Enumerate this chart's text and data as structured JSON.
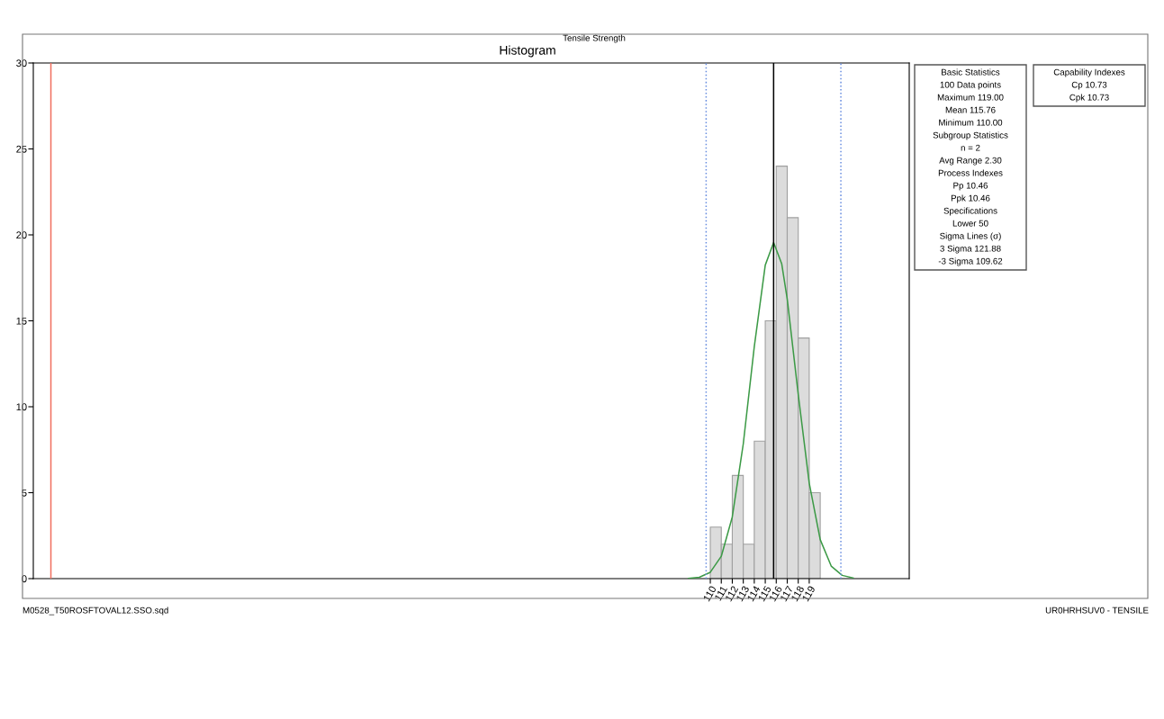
{
  "chart_data": {
    "type": "histogram",
    "title": "Histogram",
    "subtitle": "Tensile Strength",
    "bins": [
      110,
      111,
      112,
      113,
      114,
      115,
      116,
      117,
      118,
      119,
      120
    ],
    "values": [
      3,
      2,
      6,
      2,
      8,
      15,
      24,
      21,
      14,
      5
    ],
    "color": "#dcdcdc",
    "series": [
      {
        "type": "line",
        "color": "#3c9a46",
        "x": [
          108,
          109,
          110,
          111,
          112,
          113,
          114,
          115,
          115.76,
          116.5,
          117,
          118,
          119,
          120,
          121,
          122,
          123
        ],
        "values": [
          0.01,
          0.08,
          0.37,
          1.3,
          3.59,
          7.84,
          13.49,
          18.24,
          19.55,
          18.31,
          16.26,
          10.72,
          5.56,
          2.27,
          0.73,
          0.19,
          0.04
        ]
      }
    ],
    "xlim": [
      48.4,
      128.1
    ],
    "xticks": [
      110,
      111,
      112,
      113,
      114,
      115,
      116,
      117,
      118,
      119
    ],
    "ylim": [
      0,
      30
    ],
    "yticks": [
      0,
      5,
      10,
      15,
      20,
      25,
      30
    ],
    "grid": false,
    "ref_lines": [
      {
        "axis": "x",
        "value": 50,
        "color": "#f07060",
        "line_style": "solid"
      },
      {
        "axis": "x",
        "value": 109.62,
        "color": "#6a8fe0",
        "line_style": "dotted"
      },
      {
        "axis": "x",
        "value": 121.88,
        "color": "#6a8fe0",
        "line_style": "dotted"
      },
      {
        "axis": "x",
        "value": 115.76,
        "color": "#000000",
        "line_style": "solid"
      }
    ],
    "annotations": [
      "Basic Statistics",
      "100 Data points",
      "Maximum 119.00",
      "Mean 115.76",
      "Minimum 110.00",
      "Subgroup Statistics",
      "n = 2",
      "Avg Range 2.30",
      "Process Indexes",
      "Pp 10.46",
      "Ppk 10.46",
      "Specifications",
      "Lower 50",
      "Sigma Lines (σ)",
      "3 Sigma 121.88",
      "-3 Sigma 109.62",
      "Capability Indexes",
      "Cp 10.73",
      "Cpk 10.73",
      "M0528_T50ROSFTOVAL12.SSO.sqd",
      "UR0HRHSUV0 - TENSILE"
    ]
  }
}
